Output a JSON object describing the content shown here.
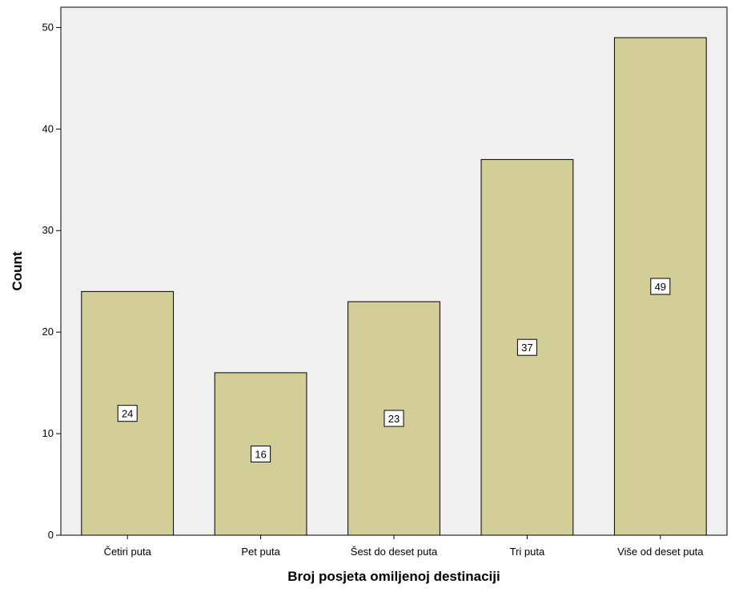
{
  "chart_data": {
    "type": "bar",
    "title": "",
    "xlabel": "Broj posjeta omiljenoj destinaciji",
    "ylabel": "Count",
    "categories": [
      "Četiri puta",
      "Pet puta",
      "Šest do deset puta",
      "Tri puta",
      "Više od deset puta"
    ],
    "values": [
      24,
      16,
      23,
      37,
      49
    ],
    "ylim": [
      0,
      52
    ],
    "yticks": [
      "0",
      "10",
      "20",
      "30",
      "40",
      "50"
    ],
    "grid": false,
    "legend": "none",
    "data_labels": [
      "24",
      "16",
      "23",
      "37",
      "49"
    ],
    "colors": {
      "bar_fill": "#d3ce97",
      "bar_stroke": "#000000",
      "plot_background": "#f0f0f0",
      "label_box_fill": "#ffffff"
    }
  }
}
